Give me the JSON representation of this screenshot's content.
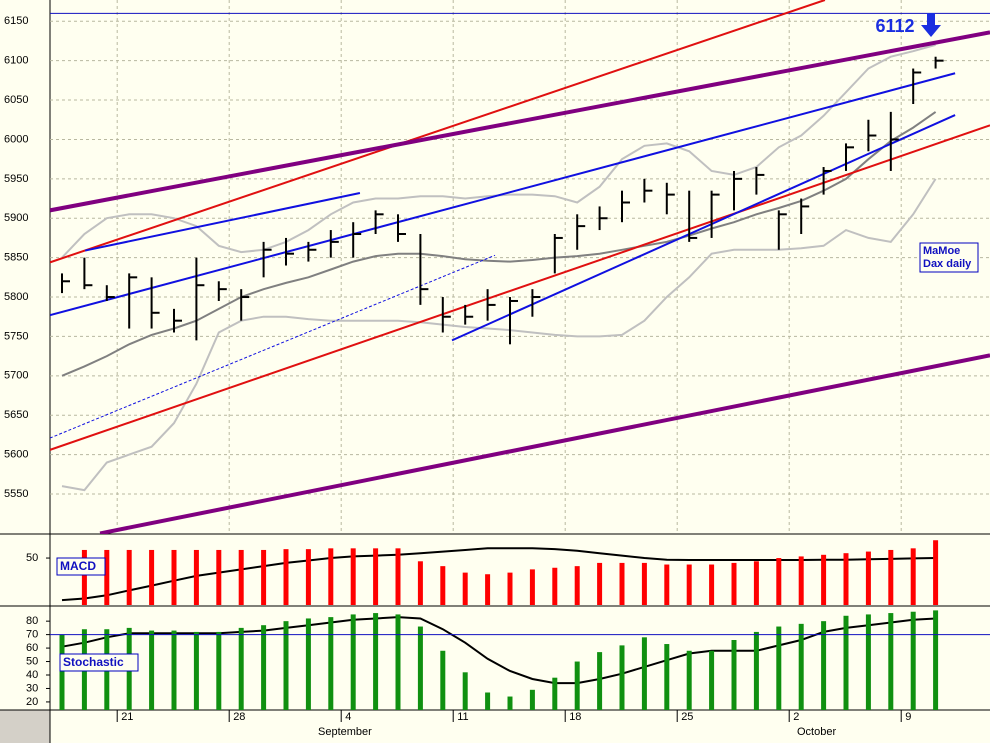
{
  "chart_data": {
    "type": "ohlc",
    "categories": [
      null,
      null,
      null,
      "21",
      null,
      null,
      null,
      null,
      "28",
      null,
      null,
      null,
      null,
      "4",
      null,
      null,
      null,
      null,
      "11",
      null,
      null,
      null,
      null,
      "18",
      null,
      null,
      null,
      null,
      "25",
      null,
      null,
      null,
      null,
      "2",
      null,
      null,
      null,
      null,
      "9",
      null
    ],
    "months": [
      "September",
      "October"
    ],
    "ylim": [
      5500,
      6177
    ],
    "yticks": [
      5550,
      5600,
      5650,
      5700,
      5750,
      5800,
      5850,
      5900,
      5950,
      6000,
      6050,
      6100,
      6150
    ],
    "grid": true,
    "color": "#000000",
    "high": [
      5830,
      5850,
      5815,
      5830,
      5825,
      5785,
      5850,
      5820,
      5810,
      5870,
      5875,
      5870,
      5885,
      5895,
      5910,
      5905,
      5880,
      5800,
      5790,
      5810,
      5800,
      5810,
      5880,
      5905,
      5915,
      5935,
      5950,
      5945,
      5935,
      5935,
      5960,
      5965,
      5910,
      5925,
      5965,
      5995,
      6025,
      6035,
      6090,
      6105
    ],
    "low": [
      5805,
      5810,
      5795,
      5760,
      5760,
      5755,
      5745,
      5795,
      5770,
      5825,
      5840,
      5845,
      5850,
      5850,
      5880,
      5870,
      5790,
      5755,
      5765,
      5770,
      5740,
      5775,
      5830,
      5860,
      5885,
      5895,
      5920,
      5905,
      5870,
      5875,
      5910,
      5930,
      5860,
      5880,
      5930,
      5960,
      5985,
      5960,
      6045,
      6090
    ],
    "close": [
      5820,
      5815,
      5800,
      5825,
      5780,
      5770,
      5815,
      5810,
      5800,
      5860,
      5855,
      5860,
      5870,
      5880,
      5905,
      5880,
      5810,
      5775,
      5775,
      5790,
      5795,
      5800,
      5875,
      5890,
      5900,
      5920,
      5935,
      5930,
      5875,
      5930,
      5950,
      5955,
      5905,
      5915,
      5960,
      5990,
      6005,
      6000,
      6085,
      6100
    ],
    "overlays": [
      {
        "color": "#c0c0c0",
        "values": [
          5850,
          5880,
          5900,
          5905,
          5905,
          5900,
          5890,
          5865,
          5857,
          5860,
          5870,
          5885,
          5905,
          5920,
          5925,
          5925,
          5928,
          5928,
          5925,
          5928,
          5930,
          5930,
          5928,
          5920,
          5940,
          5975,
          5992,
          5995,
          5985,
          5960,
          5955,
          5965,
          5990,
          6005,
          6030,
          6060,
          6090,
          6105,
          6112,
          6120
        ]
      },
      {
        "color": "#c0c0c0",
        "values": [
          5560,
          5555,
          5590,
          5600,
          5610,
          5640,
          5690,
          5755,
          5770,
          5775,
          5775,
          5772,
          5770,
          5770,
          5770,
          5770,
          5768,
          5765,
          5762,
          5760,
          5758,
          5755,
          5752,
          5750,
          5750,
          5752,
          5770,
          5800,
          5825,
          5855,
          5860,
          5860,
          5860,
          5862,
          5865,
          5885,
          5875,
          5870,
          5905,
          5950
        ]
      },
      {
        "color": "#808080",
        "values": [
          5700,
          5712,
          5725,
          5740,
          5752,
          5760,
          5770,
          5785,
          5800,
          5810,
          5818,
          5825,
          5835,
          5845,
          5852,
          5855,
          5855,
          5852,
          5848,
          5846,
          5845,
          5847,
          5850,
          5852,
          5855,
          5860,
          5865,
          5870,
          5878,
          5887,
          5895,
          5905,
          5913,
          5922,
          5935,
          5950,
          5975,
          5998,
          6015,
          6035
        ]
      }
    ],
    "trendlines": [
      {
        "color": "#e01010",
        "dashed": false,
        "x": [
          -0.54,
          34.06
        ],
        "y": [
          5844,
          6177
        ]
      },
      {
        "color": "#e01010",
        "dashed": false,
        "x": [
          -0.54,
          41.43
        ],
        "y": [
          5606,
          6018
        ]
      },
      {
        "color": "#800080",
        "dashed": false,
        "x": [
          -0.54,
          41.43
        ],
        "y": [
          5910,
          6136
        ]
      },
      {
        "color": "#800080",
        "dashed": false,
        "x": [
          1.7,
          41.43
        ],
        "y": [
          5500,
          5726
        ]
      },
      {
        "color": "#1010e0",
        "dashed": false,
        "x": [
          -0.54,
          39.87
        ],
        "y": [
          5777,
          6084
        ]
      },
      {
        "color": "#1010e0",
        "dashed": false,
        "x": [
          1.03,
          13.3
        ],
        "y": [
          5859,
          5932
        ]
      },
      {
        "color": "#1010e0",
        "dashed": false,
        "x": [
          17.41,
          39.87
        ],
        "y": [
          5745,
          6031
        ]
      },
      {
        "color": "#1010e0",
        "dashed": true,
        "x": [
          -0.54,
          19.33
        ],
        "y": [
          5621,
          5853
        ]
      }
    ],
    "reference_line": 6160,
    "annotation": 6112,
    "label_box": [
      "MaMoe",
      "Dax daily"
    ],
    "macd": {
      "label": "MACD",
      "ylim": [
        21,
        63
      ],
      "yticks": [
        50
      ],
      "color": "#ff0000",
      "bars": [
        null,
        55,
        55,
        55,
        55,
        55,
        55,
        55,
        55,
        55,
        55.5,
        55.5,
        56,
        56,
        56,
        56,
        48,
        45,
        41,
        40,
        41,
        43,
        44,
        45,
        47,
        47,
        47,
        46,
        46,
        46,
        47,
        48,
        50,
        51,
        52,
        53,
        54,
        55,
        56,
        61
      ],
      "line": [
        24,
        25,
        27,
        30,
        33,
        36,
        39,
        41,
        43,
        45,
        47,
        48.5,
        50,
        51,
        51.5,
        52,
        53,
        54,
        55,
        56,
        56,
        56,
        55.5,
        54.5,
        53,
        51.5,
        50,
        49,
        48.8,
        48.8,
        48.8,
        48.8,
        48.8,
        48.8,
        49,
        49,
        49.2,
        49.5,
        49.8,
        50
      ]
    },
    "stochastic": {
      "label": "Stochastic",
      "ylim": [
        14,
        92
      ],
      "yticks": [
        20,
        30,
        40,
        50,
        60,
        70,
        80
      ],
      "color": "#109010",
      "reference": 70,
      "bars": [
        70,
        74,
        74,
        75,
        73,
        73,
        72,
        72,
        75,
        77,
        80,
        82,
        83,
        85,
        86,
        85,
        76,
        58,
        42,
        27,
        24,
        29,
        38,
        50,
        57,
        62,
        68,
        63,
        58,
        58,
        66,
        72,
        76,
        78,
        80,
        84,
        85,
        86,
        87,
        88
      ],
      "line": [
        61,
        64,
        68,
        71,
        71,
        71,
        71,
        71,
        72,
        73,
        75,
        77,
        79,
        81,
        82,
        83,
        82,
        74,
        64,
        52,
        43,
        37,
        34,
        34,
        37,
        41,
        46,
        51,
        56,
        58,
        58,
        58,
        62,
        66,
        72,
        75,
        77,
        79,
        81,
        82
      ]
    }
  }
}
